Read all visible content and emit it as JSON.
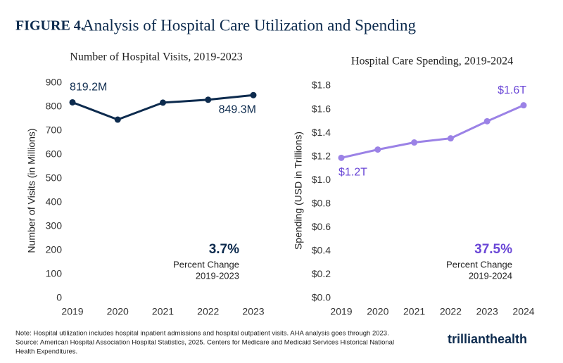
{
  "figure_label": "FIGURE 4.",
  "title": "Analysis of Hospital Care Utilization and Spending",
  "chart_data": [
    {
      "type": "line",
      "title": "Number of Hospital Visits, 2019-2023",
      "y_label": "Number of Visits (in Millions)",
      "categories": [
        "2019",
        "2020",
        "2021",
        "2022",
        "2023"
      ],
      "values": [
        819.2,
        747,
        818,
        830,
        849.3
      ],
      "value_labels": [
        "819.2M",
        null,
        null,
        null,
        "849.3M"
      ],
      "color": "#0d2b4e",
      "label_color": "#0d2b4e",
      "ylim": [
        0,
        900
      ],
      "yticks": [
        0,
        100,
        200,
        300,
        400,
        500,
        600,
        700,
        800,
        900
      ],
      "annotation": {
        "value": "3.7%",
        "label": "Percent Change",
        "period": "2019-2023"
      }
    },
    {
      "type": "line",
      "title": "Hospital Care Spending, 2019-2024",
      "y_label": "Spending (USD in Trillions)",
      "categories": [
        "2019",
        "2020",
        "2021",
        "2022",
        "2023",
        "2024"
      ],
      "values": [
        1.19,
        1.26,
        1.32,
        1.355,
        1.5,
        1.635
      ],
      "value_labels": [
        "$1.2T",
        null,
        null,
        null,
        null,
        "$1.6T"
      ],
      "color": "#9b82e6",
      "label_color": "#6a47d6",
      "ylim": [
        0,
        1.8
      ],
      "yticks": [
        {
          "value": 0,
          "label": "$0.0"
        },
        {
          "value": 0.2,
          "label": "$0.2"
        },
        {
          "value": 0.4,
          "label": "$0.4"
        },
        {
          "value": 0.6,
          "label": "$0.6"
        },
        {
          "value": 0.8,
          "label": "$0.8"
        },
        {
          "value": 1.0,
          "label": "$1.0"
        },
        {
          "value": 1.2,
          "label": "$1.2"
        },
        {
          "value": 1.4,
          "label": "$1.4"
        },
        {
          "value": 1.6,
          "label": "$1.6"
        },
        {
          "value": 1.8,
          "label": "$1.8"
        }
      ],
      "annotation": {
        "value": "37.5%",
        "label": "Percent Change",
        "period": "2019-2024"
      }
    }
  ],
  "notes": [
    "Note: Hospital utilization includes hospital inpatient admissions and hospital outpatient visits. AHA analysis goes through 2023.",
    "Source: American Hospital Association Hospital Statistics, 2025. Centers for Medicare and Medicaid Services Historical National",
    "Health Expenditures."
  ],
  "logo": {
    "part1": "trilliant",
    "part2": "health"
  }
}
